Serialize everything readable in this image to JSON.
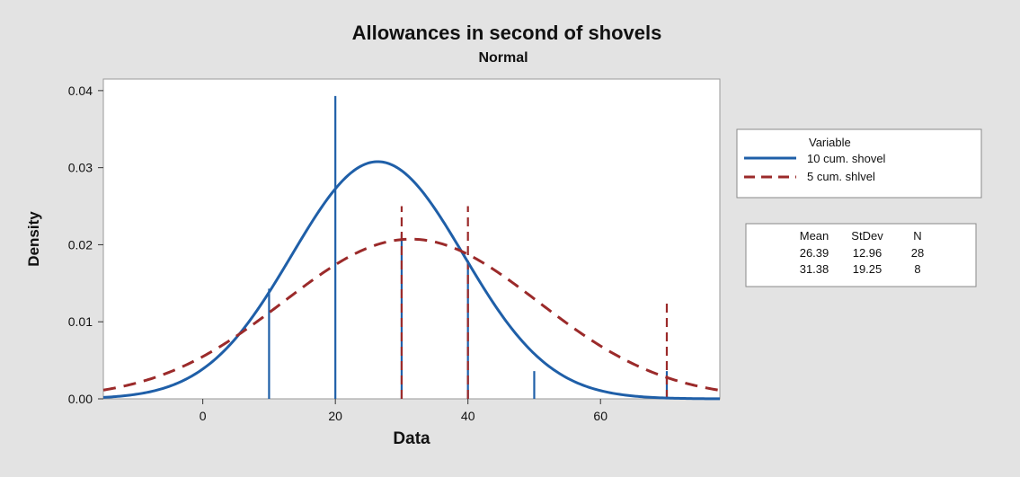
{
  "chart_data": {
    "type": "histogram-with-fit",
    "title": "Allowances in second of shovels",
    "subtitle": "Normal",
    "xlabel": "Data",
    "ylabel": "Density",
    "xlim": [
      -15,
      78
    ],
    "ylim": [
      0,
      0.0415
    ],
    "xticks": [
      0,
      20,
      40,
      60
    ],
    "yticks": [
      0.0,
      0.01,
      0.02,
      0.03,
      0.04
    ],
    "ytick_labels": [
      "0.00",
      "0.01",
      "0.02",
      "0.03",
      "0.04"
    ],
    "legend": {
      "title": "Variable",
      "placement": "right"
    },
    "series": [
      {
        "name": "10 cum. shovel",
        "color": "#1f5fa8",
        "line_style": "solid",
        "mean": 26.39,
        "stdev": 12.96,
        "n": 28,
        "spikes": [
          {
            "x": 10,
            "density": 0.0143
          },
          {
            "x": 20,
            "density": 0.0393
          },
          {
            "x": 30,
            "density": 0.0214
          },
          {
            "x": 40,
            "density": 0.0179
          },
          {
            "x": 50,
            "density": 0.0036
          },
          {
            "x": 70,
            "density": 0.0036
          }
        ]
      },
      {
        "name": "5 cum. shlvel",
        "color": "#9b2a2a",
        "line_style": "dashed",
        "mean": 31.38,
        "stdev": 19.25,
        "n": 8,
        "spikes": [
          {
            "x": 30,
            "density": 0.025
          },
          {
            "x": 40,
            "density": 0.025
          },
          {
            "x": 70,
            "density": 0.0125
          }
        ]
      }
    ],
    "stats_table": {
      "headers": [
        "Mean",
        "StDev",
        "N"
      ],
      "rows": [
        [
          "26.39",
          "12.96",
          "28"
        ],
        [
          "31.38",
          "19.25",
          "8"
        ]
      ]
    }
  }
}
